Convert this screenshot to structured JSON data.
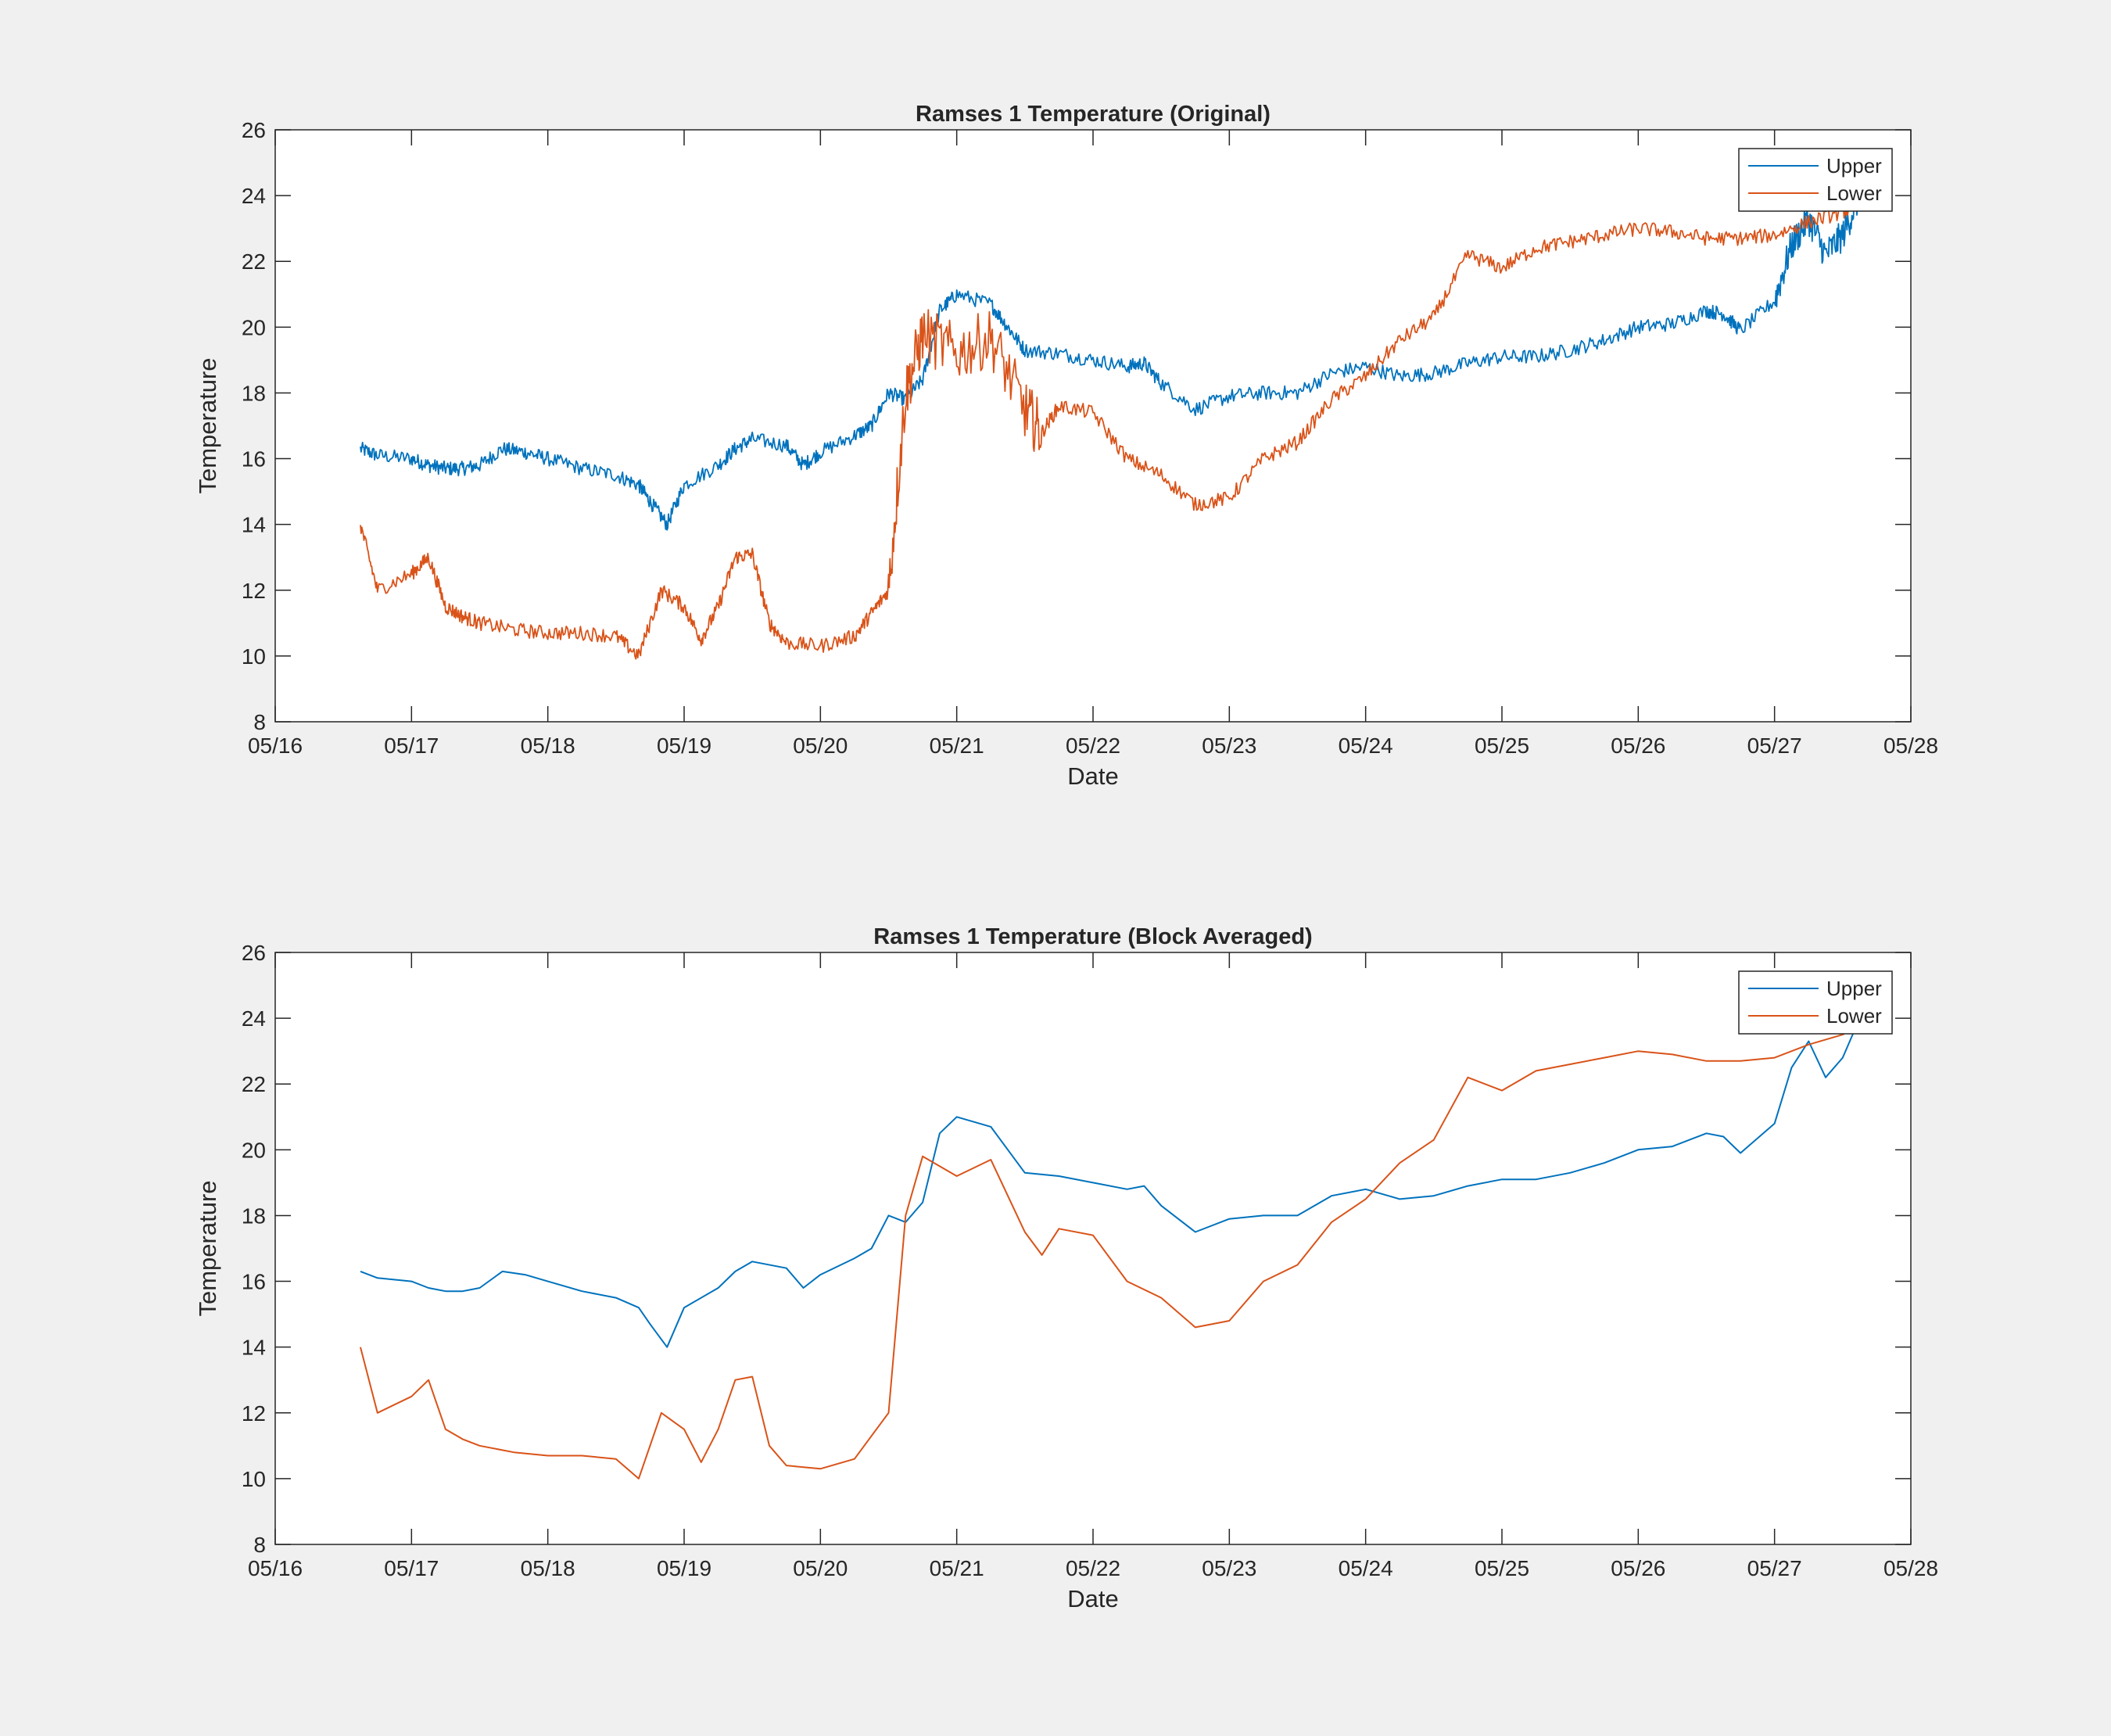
{
  "chart_data": [
    {
      "type": "line",
      "title": "Ramses 1 Temperature (Original)",
      "xlabel": "Date",
      "ylabel": "Temperature",
      "xlim": [
        "05/16",
        "05/28"
      ],
      "ylim": [
        8,
        26
      ],
      "x_ticks": [
        "05/16",
        "05/17",
        "05/18",
        "05/19",
        "05/20",
        "05/21",
        "05/22",
        "05/23",
        "05/24",
        "05/25",
        "05/26",
        "05/27",
        "05/28"
      ],
      "y_ticks": [
        8,
        10,
        12,
        14,
        16,
        18,
        20,
        22,
        24,
        26
      ],
      "grid": false,
      "legend_position": "top-right",
      "noisy": true,
      "series": [
        {
          "name": "Upper",
          "color": "#0072bd",
          "x": [
            "05/16 15:00",
            "05/16 18:00",
            "05/17 00:00",
            "05/17 03:00",
            "05/17 06:00",
            "05/17 09:00",
            "05/17 12:00",
            "05/17 16:00",
            "05/17 20:00",
            "05/18 00:00",
            "05/18 06:00",
            "05/18 12:00",
            "05/18 16:00",
            "05/18 18:00",
            "05/18 21:00",
            "05/19 00:00",
            "05/19 06:00",
            "05/19 09:00",
            "05/19 12:00",
            "05/19 18:00",
            "05/19 21:00",
            "05/20 00:00",
            "05/20 06:00",
            "05/20 09:00",
            "05/20 12:00",
            "05/20 15:00",
            "05/20 18:00",
            "05/20 21:00",
            "05/21 00:00",
            "05/21 06:00",
            "05/21 09:00",
            "05/21 12:00",
            "05/21 18:00",
            "05/22 00:00",
            "05/22 06:00",
            "05/22 09:00",
            "05/22 12:00",
            "05/22 18:00",
            "05/23 00:00",
            "05/23 06:00",
            "05/23 12:00",
            "05/23 18:00",
            "05/24 00:00",
            "05/24 06:00",
            "05/24 12:00",
            "05/24 18:00",
            "05/25 00:00",
            "05/25 06:00",
            "05/25 12:00",
            "05/25 18:00",
            "05/26 00:00",
            "05/26 06:00",
            "05/26 12:00",
            "05/26 15:00",
            "05/26 18:00",
            "05/27 00:00",
            "05/27 03:00",
            "05/27 06:00",
            "05/27 09:00",
            "05/27 12:00",
            "05/27 15:00"
          ],
          "y": [
            16.3,
            16.1,
            16.0,
            15.8,
            15.7,
            15.7,
            15.8,
            16.3,
            16.2,
            16.0,
            15.7,
            15.5,
            15.2,
            14.7,
            14.0,
            15.2,
            15.8,
            16.3,
            16.6,
            16.4,
            15.8,
            16.2,
            16.7,
            17.0,
            18.0,
            17.8,
            18.4,
            20.5,
            21.0,
            20.7,
            20.0,
            19.3,
            19.2,
            19.0,
            18.8,
            18.9,
            18.3,
            17.5,
            17.9,
            18.0,
            18.0,
            18.6,
            18.8,
            18.5,
            18.6,
            18.9,
            19.1,
            19.1,
            19.3,
            19.6,
            20.0,
            20.1,
            20.5,
            20.4,
            19.9,
            20.8,
            22.5,
            23.3,
            22.2,
            22.8,
            24.0
          ]
        },
        {
          "name": "Lower",
          "color": "#d95319",
          "x": [
            "05/16 15:00",
            "05/16 18:00",
            "05/17 00:00",
            "05/17 03:00",
            "05/17 06:00",
            "05/17 09:00",
            "05/17 12:00",
            "05/17 18:00",
            "05/18 00:00",
            "05/18 06:00",
            "05/18 12:00",
            "05/18 16:00",
            "05/18 20:00",
            "05/19 00:00",
            "05/19 03:00",
            "05/19 06:00",
            "05/19 09:00",
            "05/19 12:00",
            "05/19 15:00",
            "05/19 18:00",
            "05/20 00:00",
            "05/20 06:00",
            "05/20 09:00",
            "05/20 12:00",
            "05/20 15:00",
            "05/20 18:00",
            "05/21 00:00",
            "05/21 06:00",
            "05/21 12:00",
            "05/21 15:00",
            "05/21 18:00",
            "05/22 00:00",
            "05/22 06:00",
            "05/22 12:00",
            "05/22 18:00",
            "05/23 00:00",
            "05/23 06:00",
            "05/23 12:00",
            "05/23 18:00",
            "05/24 00:00",
            "05/24 06:00",
            "05/24 12:00",
            "05/24 18:00",
            "05/25 00:00",
            "05/25 06:00",
            "05/25 12:00",
            "05/25 18:00",
            "05/26 00:00",
            "05/26 06:00",
            "05/26 12:00",
            "05/26 18:00",
            "05/27 00:00",
            "05/27 06:00",
            "05/27 12:00",
            "05/27 15:00"
          ],
          "y": [
            14.0,
            12.0,
            12.5,
            13.0,
            11.5,
            11.2,
            11.0,
            10.8,
            10.7,
            10.7,
            10.6,
            10.0,
            12.0,
            11.5,
            10.5,
            11.5,
            13.0,
            13.1,
            11.0,
            10.4,
            10.3,
            10.6,
            11.3,
            12.0,
            18.0,
            19.8,
            19.2,
            19.7,
            17.5,
            16.8,
            17.6,
            17.4,
            16.0,
            15.5,
            14.6,
            14.8,
            16.0,
            16.5,
            17.8,
            18.5,
            19.6,
            20.3,
            22.2,
            21.8,
            22.4,
            22.6,
            22.8,
            23.0,
            22.9,
            22.7,
            22.7,
            22.8,
            23.2,
            23.5,
            23.8
          ]
        }
      ]
    },
    {
      "type": "line",
      "title": "Ramses 1 Temperature (Block Averaged)",
      "xlabel": "Date",
      "ylabel": "Temperature",
      "xlim": [
        "05/16",
        "05/28"
      ],
      "ylim": [
        8,
        26
      ],
      "x_ticks": [
        "05/16",
        "05/17",
        "05/18",
        "05/19",
        "05/20",
        "05/21",
        "05/22",
        "05/23",
        "05/24",
        "05/25",
        "05/26",
        "05/27",
        "05/28"
      ],
      "y_ticks": [
        8,
        10,
        12,
        14,
        16,
        18,
        20,
        22,
        24,
        26
      ],
      "grid": false,
      "legend_position": "top-right",
      "noisy": false,
      "series": [
        {
          "name": "Upper",
          "color": "#0072bd",
          "x": [
            "05/16 15:00",
            "05/16 18:00",
            "05/17 00:00",
            "05/17 03:00",
            "05/17 06:00",
            "05/17 09:00",
            "05/17 12:00",
            "05/17 16:00",
            "05/17 20:00",
            "05/18 00:00",
            "05/18 06:00",
            "05/18 12:00",
            "05/18 16:00",
            "05/18 18:00",
            "05/18 21:00",
            "05/19 00:00",
            "05/19 06:00",
            "05/19 09:00",
            "05/19 12:00",
            "05/19 18:00",
            "05/19 21:00",
            "05/20 00:00",
            "05/20 06:00",
            "05/20 09:00",
            "05/20 12:00",
            "05/20 15:00",
            "05/20 18:00",
            "05/20 21:00",
            "05/21 00:00",
            "05/21 06:00",
            "05/21 09:00",
            "05/21 12:00",
            "05/21 18:00",
            "05/22 00:00",
            "05/22 06:00",
            "05/22 09:00",
            "05/22 12:00",
            "05/22 18:00",
            "05/23 00:00",
            "05/23 06:00",
            "05/23 12:00",
            "05/23 18:00",
            "05/24 00:00",
            "05/24 06:00",
            "05/24 12:00",
            "05/24 18:00",
            "05/25 00:00",
            "05/25 06:00",
            "05/25 12:00",
            "05/25 18:00",
            "05/26 00:00",
            "05/26 06:00",
            "05/26 12:00",
            "05/26 15:00",
            "05/26 18:00",
            "05/27 00:00",
            "05/27 03:00",
            "05/27 06:00",
            "05/27 09:00",
            "05/27 12:00",
            "05/27 15:00"
          ],
          "y": [
            16.3,
            16.1,
            16.0,
            15.8,
            15.7,
            15.7,
            15.8,
            16.3,
            16.2,
            16.0,
            15.7,
            15.5,
            15.2,
            14.7,
            14.0,
            15.2,
            15.8,
            16.3,
            16.6,
            16.4,
            15.8,
            16.2,
            16.7,
            17.0,
            18.0,
            17.8,
            18.4,
            20.5,
            21.0,
            20.7,
            20.0,
            19.3,
            19.2,
            19.0,
            18.8,
            18.9,
            18.3,
            17.5,
            17.9,
            18.0,
            18.0,
            18.6,
            18.8,
            18.5,
            18.6,
            18.9,
            19.1,
            19.1,
            19.3,
            19.6,
            20.0,
            20.1,
            20.5,
            20.4,
            19.9,
            20.8,
            22.5,
            23.3,
            22.2,
            22.8,
            24.0
          ]
        },
        {
          "name": "Lower",
          "color": "#d95319",
          "x": [
            "05/16 15:00",
            "05/16 18:00",
            "05/17 00:00",
            "05/17 03:00",
            "05/17 06:00",
            "05/17 09:00",
            "05/17 12:00",
            "05/17 18:00",
            "05/18 00:00",
            "05/18 06:00",
            "05/18 12:00",
            "05/18 16:00",
            "05/18 20:00",
            "05/19 00:00",
            "05/19 03:00",
            "05/19 06:00",
            "05/19 09:00",
            "05/19 12:00",
            "05/19 15:00",
            "05/19 18:00",
            "05/20 00:00",
            "05/20 06:00",
            "05/20 09:00",
            "05/20 12:00",
            "05/20 15:00",
            "05/20 18:00",
            "05/21 00:00",
            "05/21 06:00",
            "05/21 12:00",
            "05/21 15:00",
            "05/21 18:00",
            "05/22 00:00",
            "05/22 06:00",
            "05/22 12:00",
            "05/22 18:00",
            "05/23 00:00",
            "05/23 06:00",
            "05/23 12:00",
            "05/23 18:00",
            "05/24 00:00",
            "05/24 06:00",
            "05/24 12:00",
            "05/24 18:00",
            "05/25 00:00",
            "05/25 06:00",
            "05/25 12:00",
            "05/25 18:00",
            "05/26 00:00",
            "05/26 06:00",
            "05/26 12:00",
            "05/26 18:00",
            "05/27 00:00",
            "05/27 06:00",
            "05/27 12:00",
            "05/27 15:00"
          ],
          "y": [
            14.0,
            12.0,
            12.5,
            13.0,
            11.5,
            11.2,
            11.0,
            10.8,
            10.7,
            10.7,
            10.6,
            10.0,
            12.0,
            11.5,
            10.5,
            11.5,
            13.0,
            13.1,
            11.0,
            10.4,
            10.3,
            10.6,
            11.3,
            12.0,
            18.0,
            19.8,
            19.2,
            19.7,
            17.5,
            16.8,
            17.6,
            17.4,
            16.0,
            15.5,
            14.6,
            14.8,
            16.0,
            16.5,
            17.8,
            18.5,
            19.6,
            20.3,
            22.2,
            21.8,
            22.4,
            22.6,
            22.8,
            23.0,
            22.9,
            22.7,
            22.7,
            22.8,
            23.2,
            23.5,
            23.8
          ]
        }
      ]
    }
  ]
}
